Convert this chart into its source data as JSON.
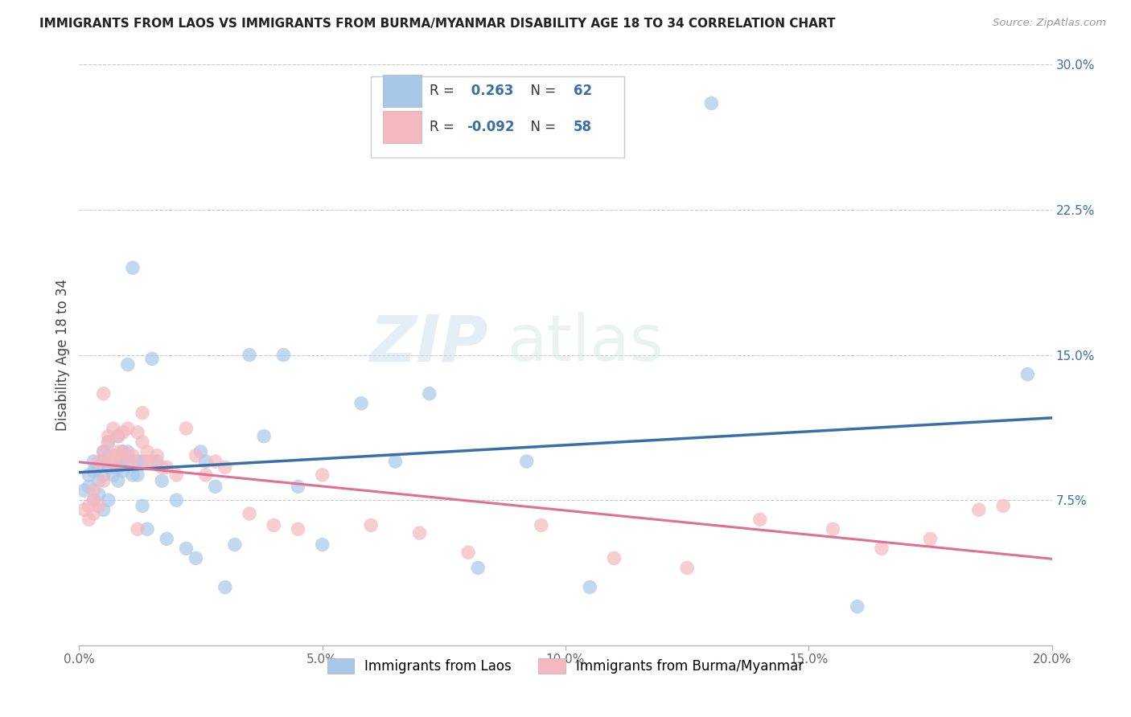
{
  "title": "IMMIGRANTS FROM LAOS VS IMMIGRANTS FROM BURMA/MYANMAR DISABILITY AGE 18 TO 34 CORRELATION CHART",
  "source": "Source: ZipAtlas.com",
  "ylabel": "Disability Age 18 to 34",
  "x_label_blue": "Immigrants from Laos",
  "x_label_pink": "Immigrants from Burma/Myanmar",
  "xlim": [
    0.0,
    0.2
  ],
  "ylim": [
    0.0,
    0.3
  ],
  "xticks": [
    0.0,
    0.05,
    0.1,
    0.15,
    0.2
  ],
  "xtick_labels": [
    "0.0%",
    "5.0%",
    "10.0%",
    "15.0%",
    "20.0%"
  ],
  "yticks_right": [
    0.075,
    0.15,
    0.225,
    0.3
  ],
  "ytick_labels_right": [
    "7.5%",
    "15.0%",
    "22.5%",
    "30.0%"
  ],
  "blue_color": "#a8c8e8",
  "pink_color": "#f4b8c0",
  "blue_line_color": "#3a6ea8",
  "pink_line_color": "#e07090",
  "watermark_zip": "ZIP",
  "watermark_atlas": "atlas",
  "blue_scatter_x": [
    0.001,
    0.002,
    0.002,
    0.003,
    0.003,
    0.003,
    0.004,
    0.004,
    0.004,
    0.005,
    0.005,
    0.005,
    0.005,
    0.006,
    0.006,
    0.006,
    0.006,
    0.007,
    0.007,
    0.007,
    0.008,
    0.008,
    0.008,
    0.009,
    0.009,
    0.009,
    0.01,
    0.01,
    0.01,
    0.011,
    0.011,
    0.012,
    0.012,
    0.013,
    0.013,
    0.014,
    0.015,
    0.016,
    0.017,
    0.018,
    0.02,
    0.022,
    0.024,
    0.025,
    0.026,
    0.028,
    0.03,
    0.032,
    0.035,
    0.038,
    0.042,
    0.045,
    0.05,
    0.058,
    0.065,
    0.072,
    0.082,
    0.092,
    0.105,
    0.13,
    0.16,
    0.195
  ],
  "blue_scatter_y": [
    0.08,
    0.082,
    0.088,
    0.075,
    0.09,
    0.095,
    0.078,
    0.085,
    0.092,
    0.07,
    0.088,
    0.095,
    0.1,
    0.075,
    0.092,
    0.098,
    0.105,
    0.088,
    0.092,
    0.098,
    0.085,
    0.092,
    0.108,
    0.09,
    0.095,
    0.1,
    0.145,
    0.095,
    0.1,
    0.088,
    0.195,
    0.095,
    0.088,
    0.095,
    0.072,
    0.06,
    0.148,
    0.095,
    0.085,
    0.055,
    0.075,
    0.05,
    0.045,
    0.1,
    0.095,
    0.082,
    0.03,
    0.052,
    0.15,
    0.108,
    0.15,
    0.082,
    0.052,
    0.125,
    0.095,
    0.13,
    0.04,
    0.095,
    0.03,
    0.28,
    0.02,
    0.14
  ],
  "pink_scatter_x": [
    0.001,
    0.002,
    0.002,
    0.003,
    0.003,
    0.003,
    0.004,
    0.004,
    0.005,
    0.005,
    0.005,
    0.006,
    0.006,
    0.006,
    0.007,
    0.007,
    0.007,
    0.008,
    0.008,
    0.008,
    0.009,
    0.009,
    0.01,
    0.01,
    0.011,
    0.011,
    0.012,
    0.012,
    0.013,
    0.013,
    0.014,
    0.014,
    0.015,
    0.016,
    0.017,
    0.018,
    0.02,
    0.022,
    0.024,
    0.026,
    0.028,
    0.03,
    0.035,
    0.04,
    0.045,
    0.05,
    0.06,
    0.07,
    0.08,
    0.095,
    0.11,
    0.125,
    0.14,
    0.155,
    0.165,
    0.175,
    0.185,
    0.19
  ],
  "pink_scatter_y": [
    0.07,
    0.072,
    0.065,
    0.075,
    0.08,
    0.068,
    0.095,
    0.072,
    0.13,
    0.085,
    0.1,
    0.095,
    0.108,
    0.105,
    0.095,
    0.098,
    0.112,
    0.095,
    0.1,
    0.108,
    0.11,
    0.1,
    0.098,
    0.112,
    0.095,
    0.098,
    0.06,
    0.11,
    0.105,
    0.12,
    0.095,
    0.1,
    0.095,
    0.098,
    0.092,
    0.092,
    0.088,
    0.112,
    0.098,
    0.088,
    0.095,
    0.092,
    0.068,
    0.062,
    0.06,
    0.088,
    0.062,
    0.058,
    0.048,
    0.062,
    0.045,
    0.04,
    0.065,
    0.06,
    0.05,
    0.055,
    0.07,
    0.072
  ]
}
